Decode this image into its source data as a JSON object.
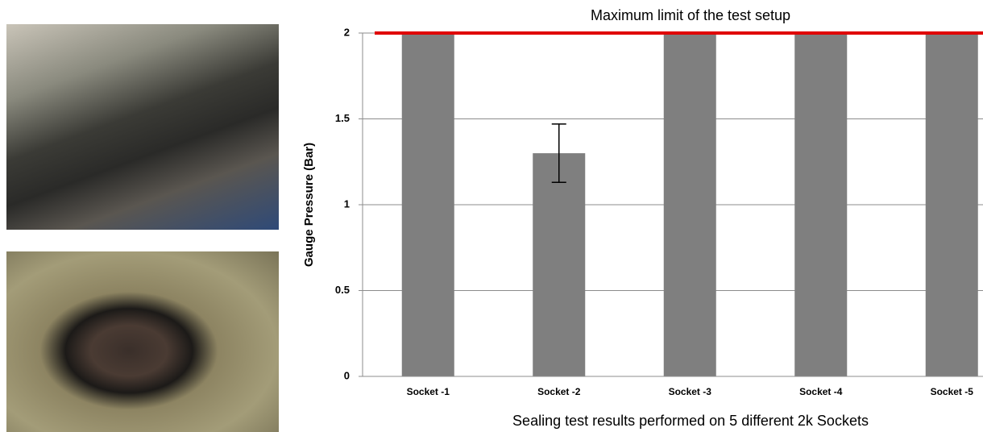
{
  "chart_data": {
    "type": "bar",
    "annotation": "Maximum limit of the test setup",
    "y_label": "Gauge Pressure (Bar)",
    "x_label": "Sealing test results performed on 5 different 2k Sockets",
    "categories": [
      "Socket -1",
      "Socket -2",
      "Socket -3",
      "Socket -4",
      "Socket -5"
    ],
    "values": [
      2,
      1.3,
      2,
      2,
      2
    ],
    "errors": [
      null,
      0.17,
      null,
      null,
      null
    ],
    "color": "#7f7f7f",
    "limit_line": {
      "value": 2,
      "color": "#e00000"
    },
    "ylim": [
      0,
      2
    ],
    "yticks": [
      0,
      0.5,
      1,
      1.5,
      2
    ],
    "grid": true
  }
}
